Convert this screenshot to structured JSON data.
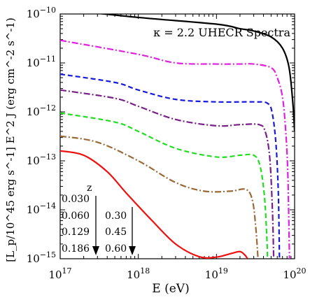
{
  "chart_data": {
    "type": "line",
    "title": "κ = 2.2  UHECR Spectra",
    "xlabel": "E (eV)",
    "ylabel": "[L_p/10^45 erg s^-1] E^2 J (erg cm^-2 s^-1)",
    "xscale": "log",
    "yscale": "log",
    "xlim": [
      1e+17,
      1e+20
    ],
    "ylim": [
      1e-15,
      1e-10
    ],
    "x_ticks": [
      {
        "value": 1e+17,
        "base": "10",
        "exp": "17"
      },
      {
        "value": 1e+18,
        "base": "10",
        "exp": "18"
      },
      {
        "value": 1e+19,
        "base": "10",
        "exp": "19"
      },
      {
        "value": 1e+20,
        "base": "10",
        "exp": "20"
      }
    ],
    "y_ticks": [
      {
        "value": 1e-15,
        "base": "10",
        "exp": "−15"
      },
      {
        "value": 1e-14,
        "base": "10",
        "exp": "−14"
      },
      {
        "value": 1e-13,
        "base": "10",
        "exp": "−13"
      },
      {
        "value": 1e-12,
        "base": "10",
        "exp": "−12"
      },
      {
        "value": 1e-11,
        "base": "10",
        "exp": "−11"
      },
      {
        "value": 1e-10,
        "base": "10",
        "exp": "−10"
      }
    ],
    "legend": {
      "header": "z",
      "col1": [
        "0.030",
        "0.060",
        "0.129",
        "0.186"
      ],
      "col2": [
        "0.30",
        "0.45",
        "0.60"
      ]
    },
    "series": [
      {
        "color": "#000000",
        "dash": "solid",
        "points": [
          [
            1e+17,
            1.25e-10
          ],
          [
            1e+18,
            8.5e-11
          ],
          [
            1e+19,
            6.2e-11
          ],
          [
            2e+19,
            5e-11
          ],
          [
            3e+19,
            4.5e-11
          ],
          [
            5e+19,
            3.4e-11
          ],
          [
            7e+19,
            2e-11
          ],
          [
            8.5e+19,
            8e-12
          ],
          [
            9.5e+19,
            1.5e-12
          ],
          [
            1e+20,
            4e-13
          ]
        ]
      },
      {
        "color": "#e020e0",
        "dash": "dashdot",
        "points": [
          [
            1e+17,
            2.9e-11
          ],
          [
            1e+18,
            1.5e-11
          ],
          [
            3e+18,
            1e-11
          ],
          [
            1e+19,
            9.5e-12
          ],
          [
            2e+19,
            9.5e-12
          ],
          [
            3e+19,
            9.5e-12
          ],
          [
            5e+19,
            8e-12
          ],
          [
            6e+19,
            5e-12
          ],
          [
            7e+19,
            2e-12
          ],
          [
            7.7e+19,
            4e-13
          ],
          [
            8.2e+19,
            5e-14
          ],
          [
            8.6e+19,
            1e-15
          ]
        ]
      },
      {
        "color": "#1a1adb",
        "dash": "dashed",
        "points": [
          [
            1e+17,
            5.9e-12
          ],
          [
            5e+17,
            4e-12
          ],
          [
            1e+18,
            2.8e-12
          ],
          [
            3e+18,
            1.8e-12
          ],
          [
            1e+19,
            1.6e-12
          ],
          [
            3e+19,
            1.6e-12
          ],
          [
            4.5e+19,
            1.5e-12
          ],
          [
            5.2e+19,
            9e-13
          ],
          [
            5.8e+19,
            2e-13
          ],
          [
            6.2e+19,
            2e-14
          ],
          [
            6.4e+19,
            1e-15
          ]
        ]
      },
      {
        "color": "#7a1f8a",
        "dash": "dashdot",
        "points": [
          [
            1e+17,
            2.8e-12
          ],
          [
            5e+17,
            1.9e-12
          ],
          [
            1e+18,
            1.3e-12
          ],
          [
            3e+18,
            7e-13
          ],
          [
            1e+19,
            5.2e-13
          ],
          [
            2e+19,
            5.5e-13
          ],
          [
            3.5e+19,
            5.5e-13
          ],
          [
            4.2e+19,
            4e-13
          ],
          [
            4.8e+19,
            1.2e-13
          ],
          [
            5.2e+19,
            1e-14
          ],
          [
            5.4e+19,
            1e-15
          ]
        ]
      },
      {
        "color": "#22dd22",
        "dash": "dashed",
        "points": [
          [
            1e+17,
            9.5e-13
          ],
          [
            5e+17,
            6.2e-13
          ],
          [
            1e+18,
            4e-13
          ],
          [
            3e+18,
            1.8e-13
          ],
          [
            1e+19,
            1.2e-13
          ],
          [
            2e+19,
            1.3e-13
          ],
          [
            3e+19,
            1.3e-13
          ],
          [
            3.6e+19,
            8e-14
          ],
          [
            4.1e+19,
            2e-14
          ],
          [
            4.4e+19,
            3e-15
          ],
          [
            4.5e+19,
            1e-15
          ]
        ]
      },
      {
        "color": "#9a6a38",
        "dash": "dashdot",
        "points": [
          [
            1e+17,
            3.2e-13
          ],
          [
            3e+17,
            2.4e-13
          ],
          [
            1e+18,
            1e-13
          ],
          [
            3e+18,
            3.6e-14
          ],
          [
            7e+18,
            2.4e-14
          ],
          [
            1.5e+19,
            2.4e-14
          ],
          [
            2.4e+19,
            2.6e-14
          ],
          [
            2.9e+19,
            1.5e-14
          ],
          [
            3.2e+19,
            4e-15
          ],
          [
            3.4e+19,
            1e-15
          ]
        ]
      },
      {
        "color": "#ee1111",
        "dash": "solid",
        "points": [
          [
            1e+17,
            1.6e-13
          ],
          [
            2e+17,
            1.3e-13
          ],
          [
            4e+17,
            6e-14
          ],
          [
            7e+17,
            2.2e-14
          ],
          [
            1.5e+18,
            6e-15
          ],
          [
            3e+18,
            2e-15
          ],
          [
            6e+18,
            1.1e-15
          ],
          [
            1e+19,
            1.08e-15
          ],
          [
            1.6e+19,
            1.3e-15
          ],
          [
            2e+19,
            1.4e-15
          ],
          [
            2.3e+19,
            1.2e-15
          ],
          [
            2.5e+19,
            1e-15
          ]
        ]
      }
    ]
  }
}
